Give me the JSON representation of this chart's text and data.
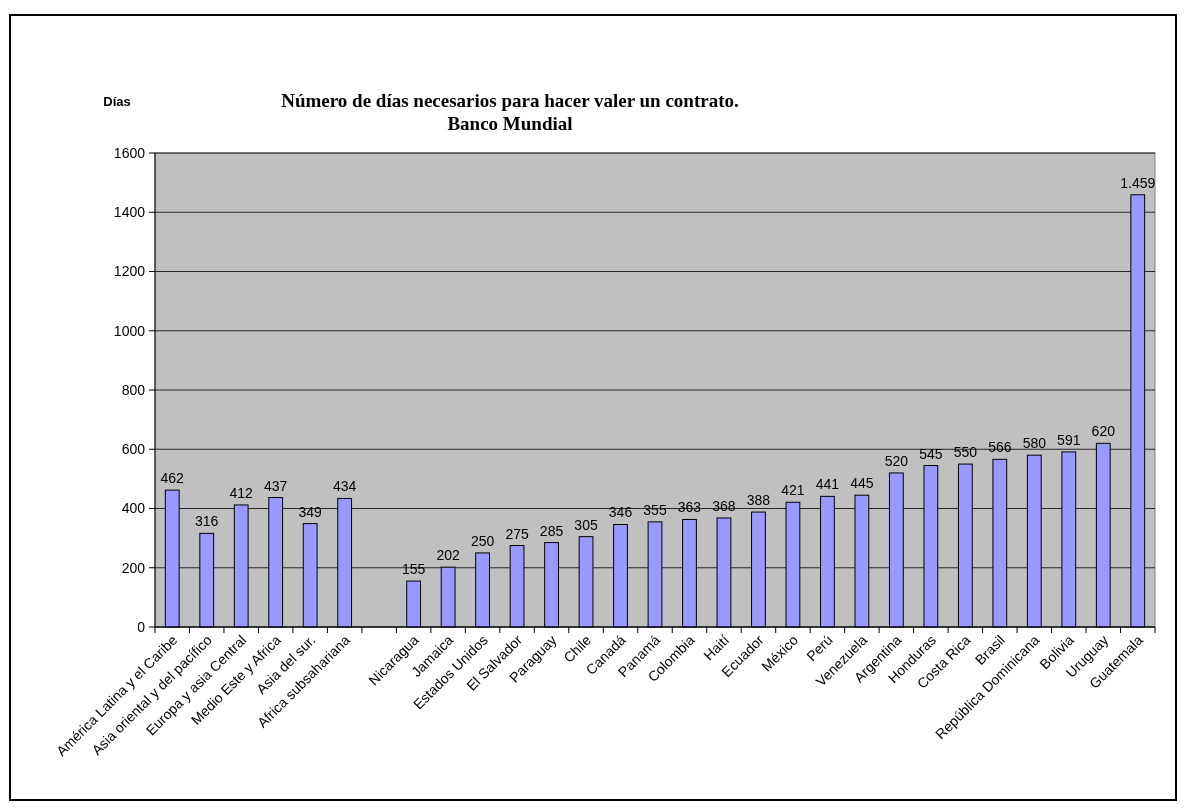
{
  "chart_data": {
    "type": "bar",
    "title": "Número de días necesarios para hacer valer un contrato.\nBanco Mundial",
    "ylabel": "Días",
    "categories": [
      "América Latina y el Caribe",
      "Asia oriental y del pacífico",
      "Europa y asia Central",
      "Medio Este y Africa",
      "Asia del sur.",
      "Africa subsahariana",
      null,
      "Nicaragua",
      "Jamaica",
      "Estados Unidos",
      "El Salvador",
      "Paraguay",
      "Chile",
      "Canadá",
      "Panamá",
      "Colombia",
      "Haití",
      "Ecuador",
      "México",
      "Perú",
      "Venezuela",
      "Argentina",
      "Honduras",
      "Costa Rica",
      "Brasil",
      "República Dominicana",
      "Bolivia",
      "Uruguay",
      "Guatemala"
    ],
    "values": [
      462,
      316,
      412,
      437,
      349,
      434,
      null,
      155,
      202,
      250,
      275,
      285,
      305,
      346,
      355,
      363,
      368,
      388,
      421,
      441,
      445,
      520,
      545,
      550,
      566,
      580,
      591,
      620,
      1459
    ],
    "value_labels": [
      "462",
      "316",
      "412",
      "437",
      "349",
      "434",
      null,
      "155",
      "202",
      "250",
      "275",
      "285",
      "305",
      "346",
      "355",
      "363",
      "368",
      "388",
      "421",
      "441",
      "445",
      "520",
      "545",
      "550",
      "566",
      "580",
      "591",
      "620",
      "1.459"
    ],
    "color": "#9999ff",
    "ylim": [
      0,
      1600
    ],
    "yticks": [
      0,
      200,
      400,
      600,
      800,
      1000,
      1200,
      1400,
      1600
    ],
    "grid": "y"
  }
}
